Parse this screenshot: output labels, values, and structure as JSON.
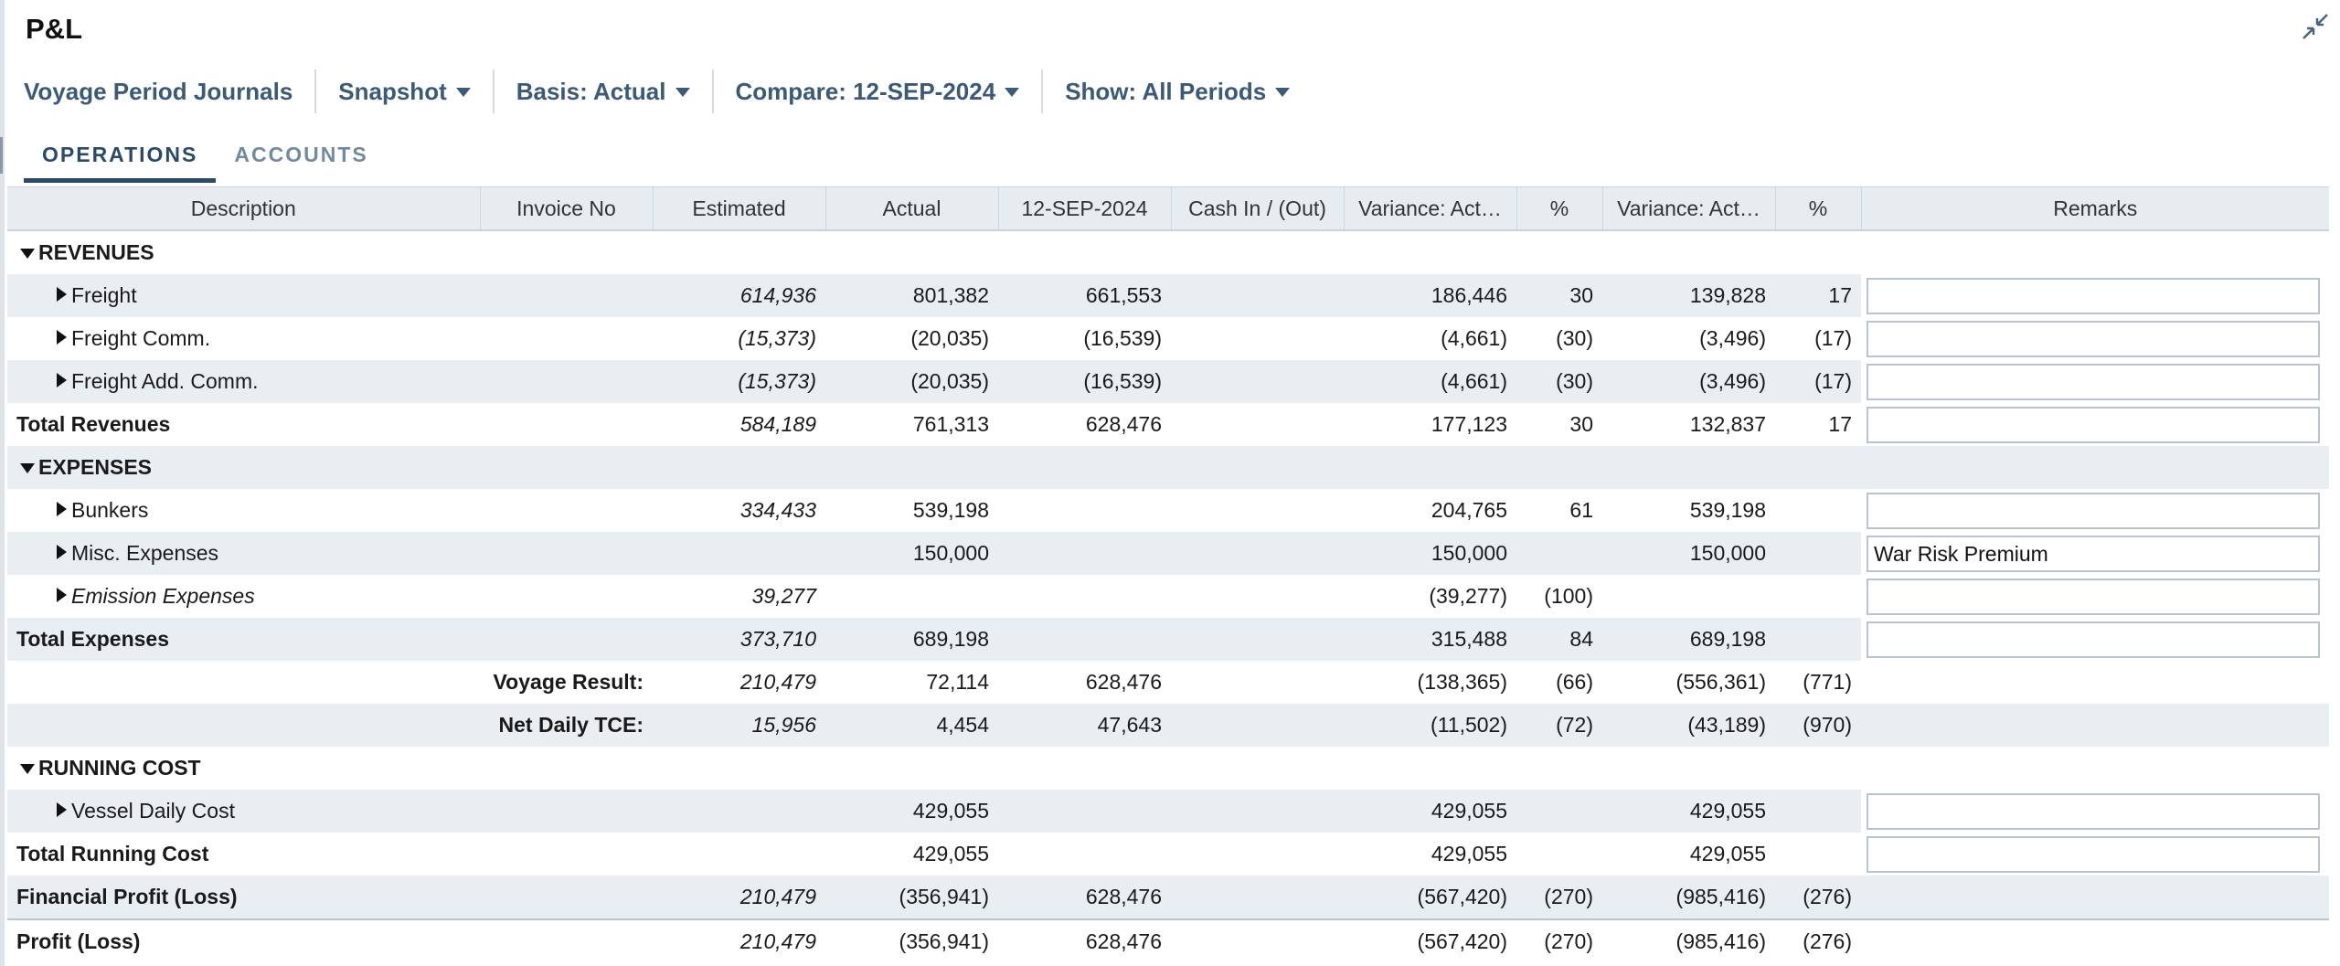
{
  "title": "P&L",
  "toolbar": {
    "journals": "Voyage Period Journals",
    "snapshot": "Snapshot",
    "basis": "Basis: Actual",
    "compare": "Compare: 12-SEP-2024",
    "show": "Show: All Periods"
  },
  "tabs": [
    "OPERATIONS",
    "ACCOUNTS"
  ],
  "columns": [
    "Description",
    "Invoice No",
    "Estimated",
    "Actual",
    "12-SEP-2024",
    "Cash In / (Out)",
    "Variance: Act…",
    "%",
    "Variance: Act…",
    "%",
    "Remarks"
  ],
  "rows": [
    {
      "kind": "section",
      "desc": "REVENUES"
    },
    {
      "kind": "item",
      "desc": "Freight",
      "est": "614,936",
      "act": "801,382",
      "cmp": "661,553",
      "var1": "186,446",
      "p1": "30",
      "var2": "139,828",
      "p2": "17",
      "remark": ""
    },
    {
      "kind": "item",
      "desc": "Freight Comm.",
      "est": "(15,373)",
      "act": "(20,035)",
      "cmp": "(16,539)",
      "var1": "(4,661)",
      "p1": "(30)",
      "var2": "(3,496)",
      "p2": "(17)",
      "remark": ""
    },
    {
      "kind": "item",
      "desc": "Freight Add. Comm.",
      "est": "(15,373)",
      "act": "(20,035)",
      "cmp": "(16,539)",
      "var1": "(4,661)",
      "p1": "(30)",
      "var2": "(3,496)",
      "p2": "(17)",
      "remark": ""
    },
    {
      "kind": "total",
      "desc": "Total Revenues",
      "est": "584,189",
      "act": "761,313",
      "cmp": "628,476",
      "var1": "177,123",
      "p1": "30",
      "var2": "132,837",
      "p2": "17",
      "remark": ""
    },
    {
      "kind": "section",
      "desc": "EXPENSES"
    },
    {
      "kind": "item",
      "desc": "Bunkers",
      "est": "334,433",
      "act": "539,198",
      "cmp": "",
      "var1": "204,765",
      "p1": "61",
      "var2": "539,198",
      "p2": "",
      "remark": ""
    },
    {
      "kind": "item",
      "desc": "Misc. Expenses",
      "est": "",
      "act": "150,000",
      "cmp": "",
      "var1": "150,000",
      "p1": "",
      "var2": "150,000",
      "p2": "",
      "remark": "War Risk Premium"
    },
    {
      "kind": "item",
      "desc": "Emission Expenses",
      "italic": true,
      "est": "39,277",
      "act": "",
      "cmp": "",
      "var1": "(39,277)",
      "p1": "(100)",
      "var2": "",
      "p2": "",
      "remark": ""
    },
    {
      "kind": "total",
      "desc": "Total Expenses",
      "est": "373,710",
      "act": "689,198",
      "cmp": "",
      "var1": "315,488",
      "p1": "84",
      "var2": "689,198",
      "p2": "",
      "remark": ""
    },
    {
      "kind": "result",
      "desc": "Voyage Result:",
      "est": "210,479",
      "act": "72,114",
      "cmp": "628,476",
      "var1": "(138,365)",
      "p1": "(66)",
      "var2": "(556,361)",
      "p2": "(771)"
    },
    {
      "kind": "result",
      "desc": "Net Daily TCE:",
      "est": "15,956",
      "act": "4,454",
      "cmp": "47,643",
      "var1": "(11,502)",
      "p1": "(72)",
      "var2": "(43,189)",
      "p2": "(970)"
    },
    {
      "kind": "section",
      "desc": "RUNNING COST"
    },
    {
      "kind": "item",
      "desc": "Vessel Daily Cost",
      "est": "",
      "act": "429,055",
      "cmp": "",
      "var1": "429,055",
      "p1": "",
      "var2": "429,055",
      "p2": "",
      "remark": ""
    },
    {
      "kind": "total",
      "desc": "Total Running Cost",
      "est": "",
      "act": "429,055",
      "cmp": "",
      "var1": "429,055",
      "p1": "",
      "var2": "429,055",
      "p2": "",
      "remark": ""
    },
    {
      "kind": "total-noremark",
      "desc": "Financial Profit (Loss)",
      "est": "210,479",
      "act": "(356,941)",
      "cmp": "628,476",
      "var1": "(567,420)",
      "p1": "(270)",
      "var2": "(985,416)",
      "p2": "(276)"
    },
    {
      "kind": "total-noremark",
      "desc": "Profit (Loss)",
      "est": "210,479",
      "act": "(356,941)",
      "cmp": "628,476",
      "var1": "(567,420)",
      "p1": "(270)",
      "var2": "(985,416)",
      "p2": "(276)",
      "last": true
    }
  ]
}
